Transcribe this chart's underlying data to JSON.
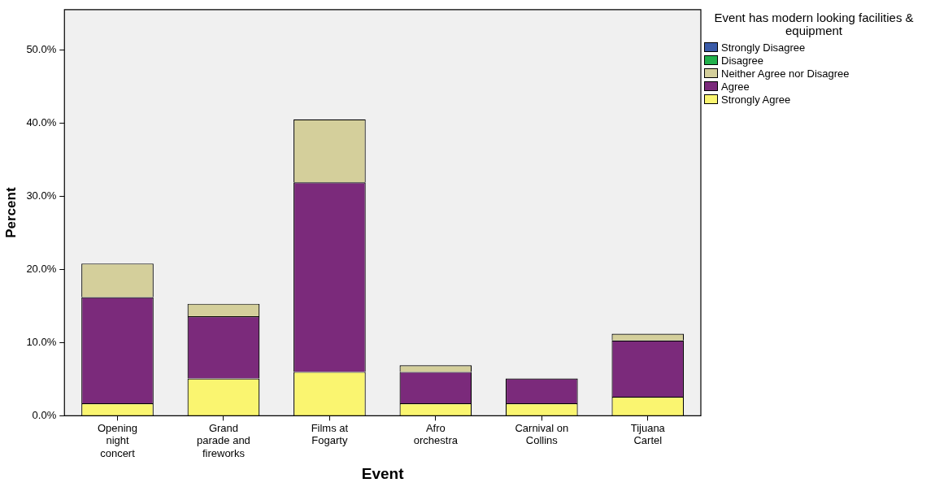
{
  "chart_data": {
    "type": "bar",
    "stacked": true,
    "xlabel": "Event",
    "ylabel": "Percent",
    "legend_title": "Event has modern looking facilities & equipment",
    "legend": "top right",
    "grid": false,
    "categories": [
      "Opening\nnight\nconcert",
      "Grand\nparade and\nfireworks",
      "Films at\nFogarty",
      "Afro\norchestra",
      "Carnival on\nCollins",
      "Tijuana\nCartel"
    ],
    "ylim": [
      0,
      55.5
    ],
    "yticks": [
      {
        "value": 0,
        "label": "0.0%"
      },
      {
        "value": 10,
        "label": "10.0%"
      },
      {
        "value": 20,
        "label": "20.0%"
      },
      {
        "value": 30,
        "label": "30.0%"
      },
      {
        "value": 40,
        "label": "40.0%"
      },
      {
        "value": 50,
        "label": "50.0%"
      }
    ],
    "series": [
      {
        "name": "Strongly Agree",
        "color": "#faf570",
        "values": [
          1.7,
          5.1,
          6.0,
          1.7,
          1.7,
          2.6
        ]
      },
      {
        "name": "Agree",
        "color": "#7b2a7b",
        "values": [
          14.5,
          8.5,
          25.9,
          4.3,
          3.4,
          7.7
        ]
      },
      {
        "name": "Neither Agree nor Disagree",
        "color": "#d4cf9b",
        "values": [
          4.6,
          1.7,
          8.6,
          0.9,
          0,
          0.9
        ]
      },
      {
        "name": "Disagree",
        "color": "#22b14c",
        "values": [
          0,
          0,
          0,
          0,
          0,
          0
        ]
      },
      {
        "name": "Strongly Disagree",
        "color": "#3a5ba8",
        "values": [
          0,
          0,
          0,
          0,
          0,
          0
        ]
      }
    ]
  }
}
